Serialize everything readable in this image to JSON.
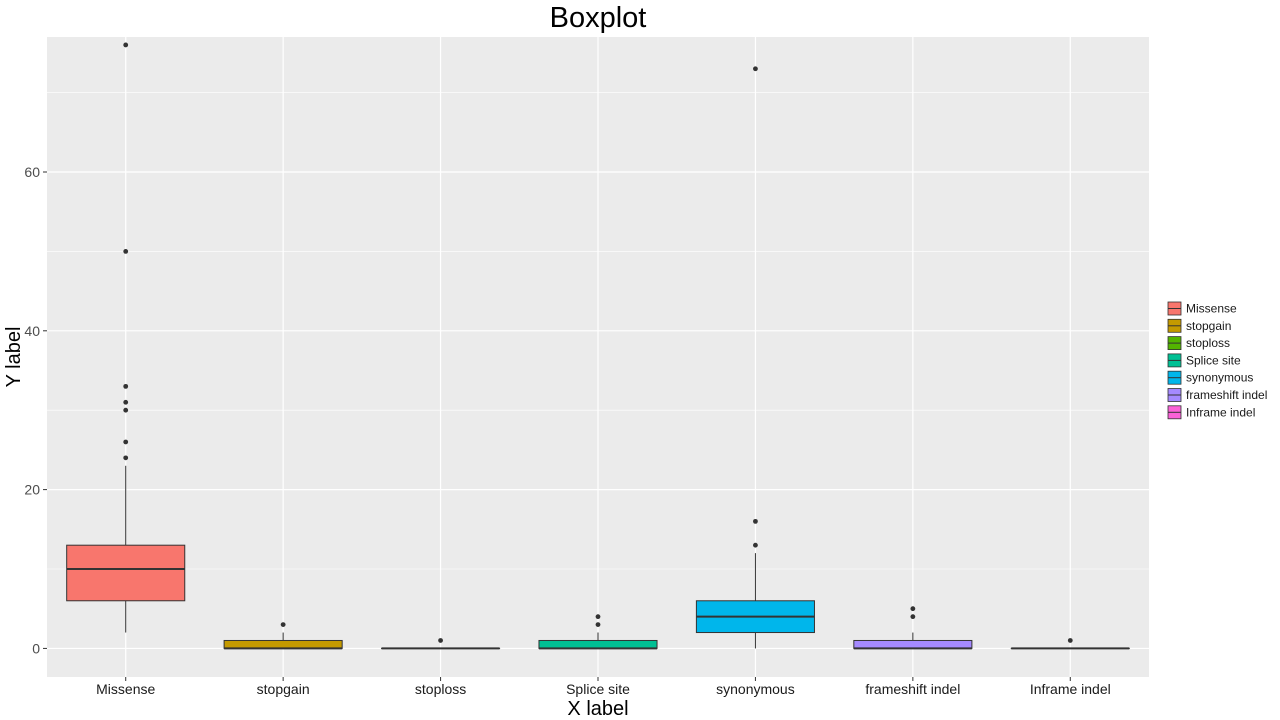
{
  "chart_data": {
    "type": "boxplot",
    "title": "Boxplot",
    "xlabel": "X label",
    "ylabel": "Y label",
    "ylim": [
      -3.6,
      77
    ],
    "yticks": [
      0,
      20,
      40,
      60
    ],
    "grid": true,
    "legend_position": "right",
    "categories": [
      "Missense",
      "stopgain",
      "stoploss",
      "Splice site",
      "synonymous",
      "frameshift indel",
      "Inframe indel"
    ],
    "series": [
      {
        "name": "Missense",
        "color": "#F8766D",
        "min": 2,
        "q1": 6,
        "median": 10,
        "q3": 13,
        "max": 23,
        "outliers": [
          24,
          26,
          30,
          31,
          33,
          50,
          76
        ]
      },
      {
        "name": "stopgain",
        "color": "#C49A00",
        "min": 0,
        "q1": 0,
        "median": 0,
        "q3": 1,
        "max": 2,
        "outliers": [
          3
        ]
      },
      {
        "name": "stoploss",
        "color": "#53B400",
        "min": 0,
        "q1": 0,
        "median": 0,
        "q3": 0,
        "max": 0,
        "outliers": [
          1
        ]
      },
      {
        "name": "Splice site",
        "color": "#00C094",
        "min": 0,
        "q1": 0,
        "median": 0,
        "q3": 1,
        "max": 2,
        "outliers": [
          3,
          4
        ]
      },
      {
        "name": "synonymous",
        "color": "#00B6EB",
        "min": 0,
        "q1": 2,
        "median": 4,
        "q3": 6,
        "max": 12,
        "outliers": [
          13,
          16,
          73
        ]
      },
      {
        "name": "frameshift indel",
        "color": "#A58AFF",
        "min": 0,
        "q1": 0,
        "median": 0,
        "q3": 1,
        "max": 2,
        "outliers": [
          4,
          5
        ]
      },
      {
        "name": "Inframe indel",
        "color": "#FB61D7",
        "min": 0,
        "q1": 0,
        "median": 0,
        "q3": 0,
        "max": 0,
        "outliers": [
          1
        ]
      }
    ]
  },
  "colors": {
    "panel_background": "#EBEBEB",
    "grid_major": "#FFFFFF",
    "box_outline": "#333333",
    "outlier_point": "#333333"
  }
}
